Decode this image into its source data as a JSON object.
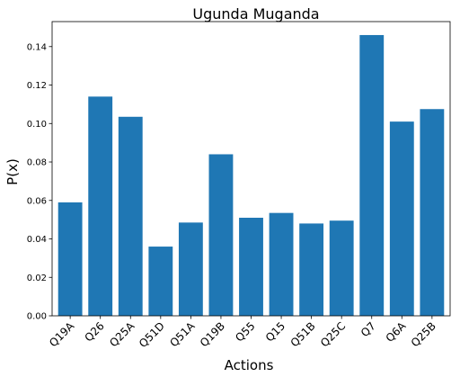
{
  "chart_data": {
    "type": "bar",
    "title": "Ugunda Muganda",
    "xlabel": "Actions",
    "ylabel": "P(x)",
    "categories": [
      "Q19A",
      "Q26",
      "Q25A",
      "Q51D",
      "Q51A",
      "Q19B",
      "Q55",
      "Q15",
      "Q51B",
      "Q25C",
      "Q7",
      "Q6A",
      "Q25B"
    ],
    "values": [
      0.059,
      0.114,
      0.1035,
      0.036,
      0.0485,
      0.084,
      0.051,
      0.0535,
      0.048,
      0.0495,
      0.146,
      0.101,
      0.1075
    ],
    "ylim": [
      0,
      0.153
    ],
    "yticks": [
      "0.00",
      "0.02",
      "0.04",
      "0.06",
      "0.08",
      "0.10",
      "0.12",
      "0.14"
    ],
    "bar_color": "#1f77b4",
    "grid": false
  }
}
